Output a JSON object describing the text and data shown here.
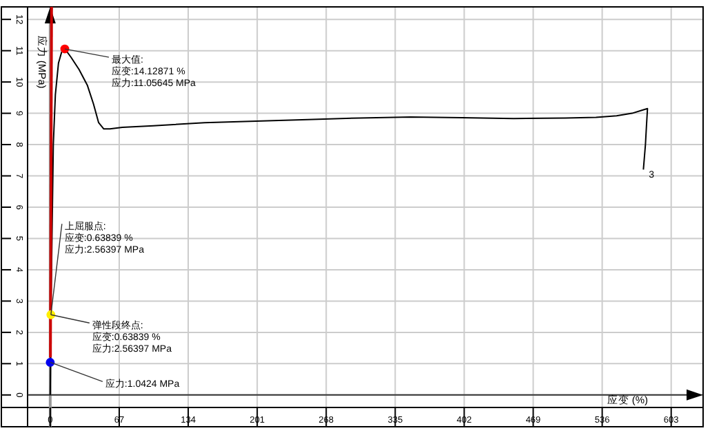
{
  "chart_data": {
    "type": "line",
    "xlabel": "应变 (%)",
    "ylabel": "应力 (MPa)",
    "xlim": [
      -22,
      634
    ],
    "ylim": [
      -0.4,
      12.4
    ],
    "xticks": [
      0,
      67,
      134,
      201,
      268,
      335,
      402,
      469,
      536,
      603
    ],
    "yticks": [
      0,
      1,
      2,
      3,
      4,
      5,
      6,
      7,
      8,
      9,
      10,
      11,
      12
    ],
    "grid": true,
    "series": [
      {
        "color": "#000000",
        "x": [
          0,
          0.3,
          0.64,
          3,
          5,
          8,
          11,
          14.13,
          20,
          28,
          36,
          42,
          47,
          52,
          58,
          70,
          100,
          150,
          200,
          250,
          300,
          350,
          400,
          450,
          500,
          530,
          550,
          565,
          575,
          580,
          579,
          578,
          577,
          576
        ],
        "values": [
          0,
          1.04,
          2.56,
          8.0,
          9.6,
          10.6,
          10.95,
          11.06,
          10.8,
          10.4,
          9.9,
          9.3,
          8.7,
          8.5,
          8.5,
          8.55,
          8.6,
          8.7,
          8.75,
          8.8,
          8.85,
          8.88,
          8.86,
          8.83,
          8.85,
          8.87,
          8.92,
          9.0,
          9.1,
          9.15,
          8.6,
          8.0,
          7.6,
          7.2
        ]
      },
      {
        "color": "#cc0000",
        "x": [
          0.2,
          1.3
        ],
        "values": [
          1.2,
          12.4
        ]
      },
      {
        "type": "scatter",
        "color": "#ff0000",
        "x": [
          14.12871
        ],
        "values": [
          11.05645
        ]
      },
      {
        "type": "scatter",
        "color": "#ffee00",
        "x": [
          0.63839
        ],
        "values": [
          2.56397
        ]
      },
      {
        "type": "scatter",
        "color": "#0000ee",
        "x": [
          0
        ],
        "values": [
          1.0424
        ]
      }
    ],
    "annotations": [
      {
        "text": "最大值:\n应变:14.12871 %\n应力:11.05645 MPa",
        "x": 14.12871,
        "y": 11.05645
      },
      {
        "text": "上屈服点:\n应变:0.63839 %\n应力:2.56397 MPa",
        "x": 0.63839,
        "y": 2.56397
      },
      {
        "text": "弹性段终点:\n应变:0.63839 %\n应力:2.56397 MPa",
        "x": 0.63839,
        "y": 2.56397
      },
      {
        "text": "应力:1.0424 MPa",
        "x": 0,
        "y": 1.0424
      },
      {
        "text": "3",
        "x": 576,
        "y": 7.2
      }
    ]
  }
}
